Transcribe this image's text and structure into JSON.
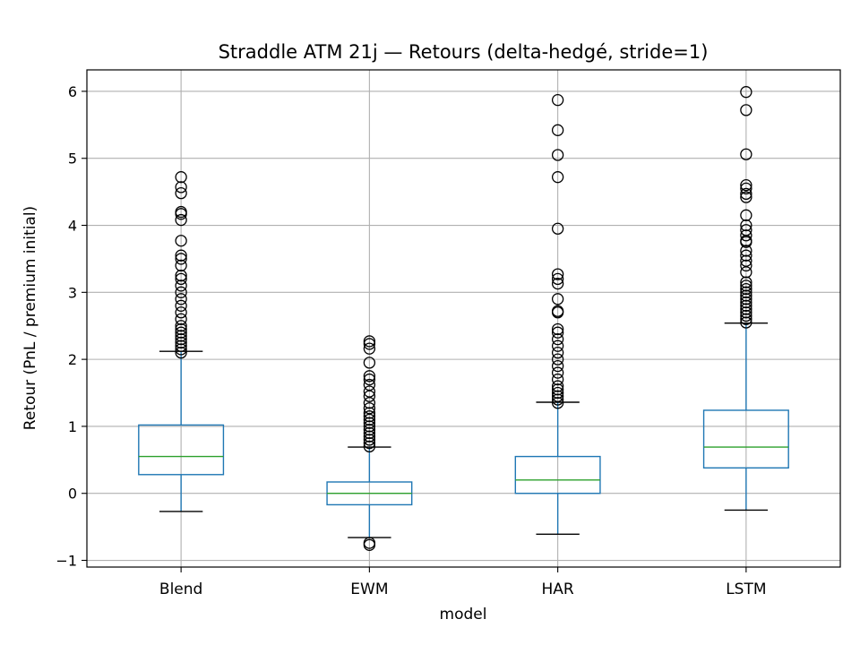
{
  "chart_data": {
    "type": "box",
    "title": "Straddle ATM 21j — Retours (delta-hedgé, stride=1)",
    "xlabel": "model",
    "ylabel": "Retour (PnL / premium initial)",
    "ylim": [
      -1.1,
      6.32
    ],
    "yticks": [
      -1,
      0,
      1,
      2,
      3,
      4,
      5,
      6
    ],
    "grid": true,
    "colors": {
      "box": "#1f77b4",
      "median": "#2ca02c",
      "whisker_cap": "#000000",
      "outlier": "#000000",
      "grid": "#b0b0b0"
    },
    "categories": [
      "Blend",
      "EWM",
      "HAR",
      "LSTM"
    ],
    "boxes": [
      {
        "name": "Blend",
        "whisker_low": -0.27,
        "q1": 0.28,
        "median": 0.55,
        "q3": 1.02,
        "whisker_high": 2.12,
        "outliers": [
          2.1,
          2.15,
          2.2,
          2.25,
          2.3,
          2.35,
          2.4,
          2.45,
          2.5,
          2.6,
          2.7,
          2.8,
          2.9,
          3.0,
          3.1,
          3.2,
          3.25,
          3.4,
          3.5,
          3.55,
          3.77,
          4.08,
          4.17,
          4.2,
          4.48,
          4.57,
          4.72
        ]
      },
      {
        "name": "EWM",
        "whisker_low": -0.66,
        "q1": -0.17,
        "median": 0.0,
        "q3": 0.17,
        "whisker_high": 0.69,
        "outliers": [
          -0.74,
          -0.77,
          0.7,
          0.75,
          0.8,
          0.85,
          0.9,
          0.95,
          1.0,
          1.05,
          1.1,
          1.15,
          1.2,
          1.27,
          1.35,
          1.45,
          1.52,
          1.62,
          1.7,
          1.75,
          1.95,
          2.16,
          2.23,
          2.27
        ]
      },
      {
        "name": "HAR",
        "whisker_low": -0.61,
        "q1": 0.0,
        "median": 0.2,
        "q3": 0.55,
        "whisker_high": 1.36,
        "outliers": [
          1.35,
          1.4,
          1.45,
          1.5,
          1.55,
          1.6,
          1.7,
          1.8,
          1.9,
          2.0,
          2.1,
          2.2,
          2.3,
          2.4,
          2.45,
          2.7,
          2.72,
          2.9,
          3.13,
          3.2,
          3.27,
          3.95,
          4.72,
          5.05,
          5.42,
          5.87
        ]
      },
      {
        "name": "LSTM",
        "whisker_low": -0.25,
        "q1": 0.38,
        "median": 0.69,
        "q3": 1.24,
        "whisker_high": 2.54,
        "outliers": [
          2.55,
          2.6,
          2.65,
          2.7,
          2.75,
          2.8,
          2.85,
          2.9,
          2.95,
          3.0,
          3.05,
          3.1,
          3.15,
          3.3,
          3.4,
          3.47,
          3.55,
          3.62,
          3.75,
          3.77,
          3.85,
          3.93,
          4.0,
          4.15,
          4.42,
          4.47,
          4.55,
          4.6,
          5.06,
          5.72,
          5.99
        ]
      }
    ]
  }
}
